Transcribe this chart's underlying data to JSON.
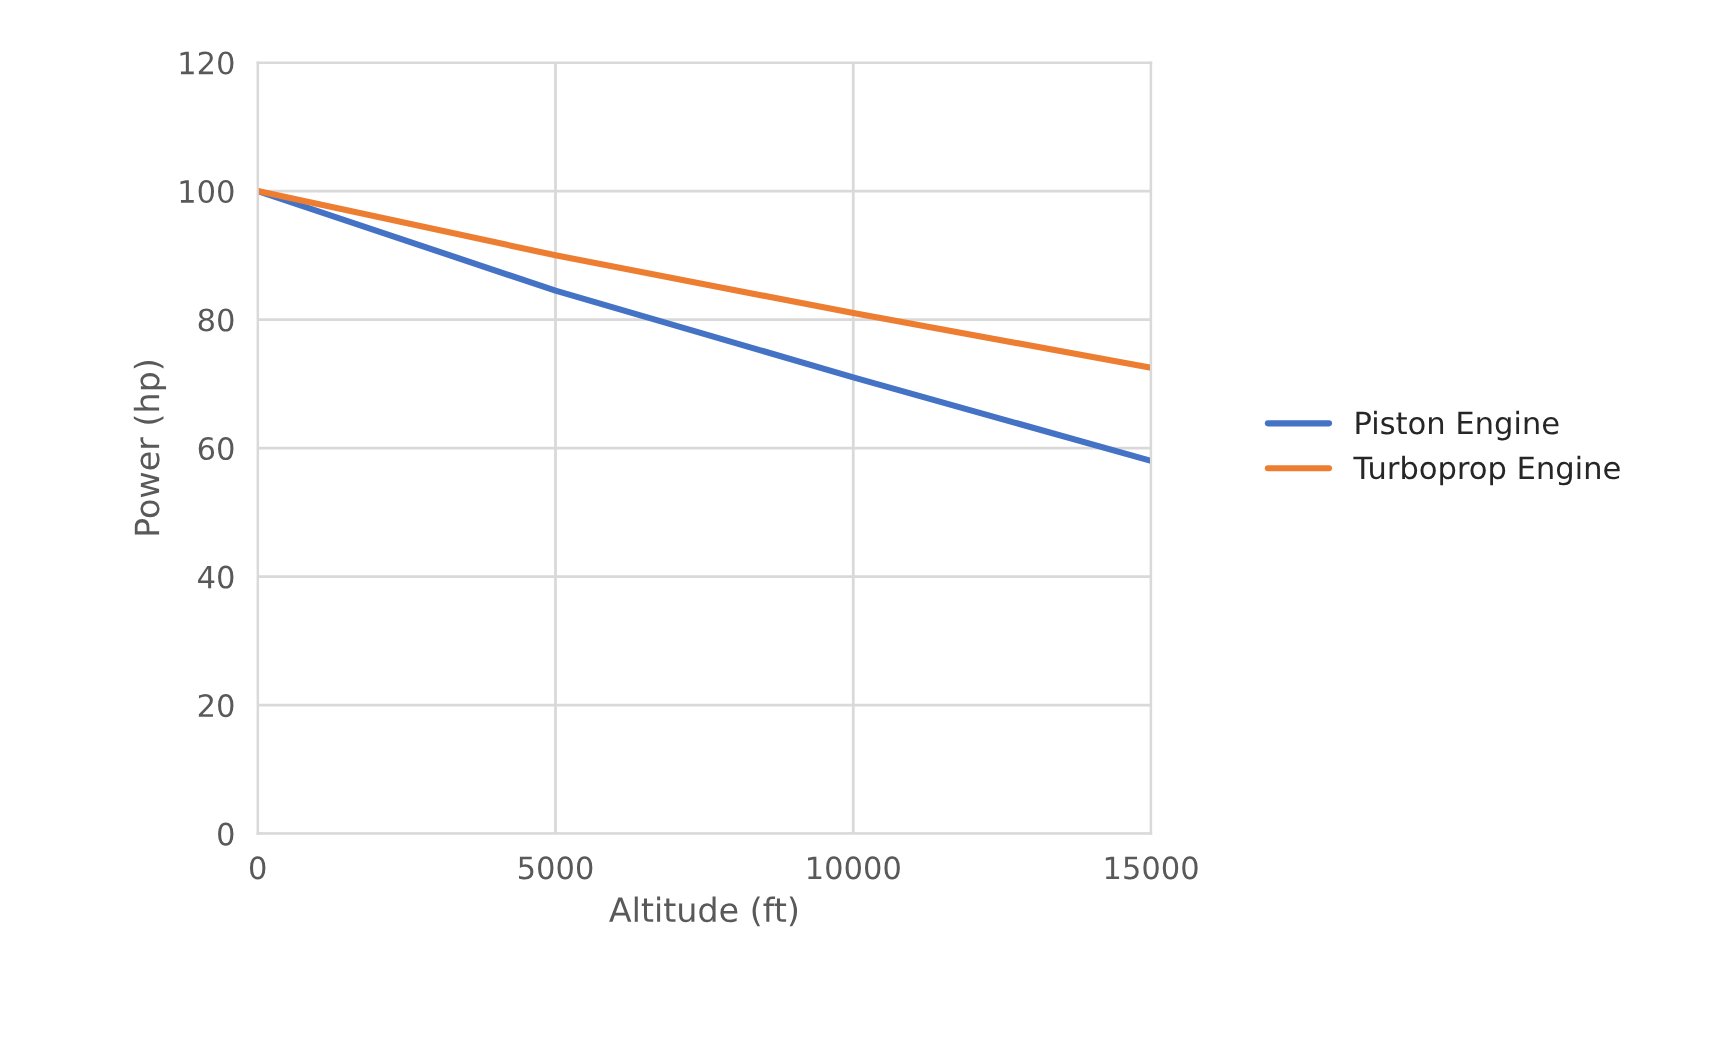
{
  "chart_data": {
    "type": "line",
    "xlabel": "Altitude (ft)",
    "ylabel": "Power (hp)",
    "x": [
      0,
      5000,
      10000,
      15000
    ],
    "series": [
      {
        "name": "Piston Engine",
        "color": "#4472c4",
        "values": [
          100,
          84.5,
          71,
          58
        ]
      },
      {
        "name": "Turboprop Engine",
        "color": "#ed7d31",
        "values": [
          100,
          90,
          81,
          72.5
        ]
      }
    ],
    "xlim": [
      0,
      15000
    ],
    "xticks": [
      0,
      5000,
      10000,
      15000
    ],
    "ylim": [
      0,
      120
    ],
    "yticks": [
      0,
      20,
      40,
      60,
      80,
      100,
      120
    ],
    "grid": true,
    "legend": "right",
    "marker": "none",
    "line_style": "solid"
  }
}
